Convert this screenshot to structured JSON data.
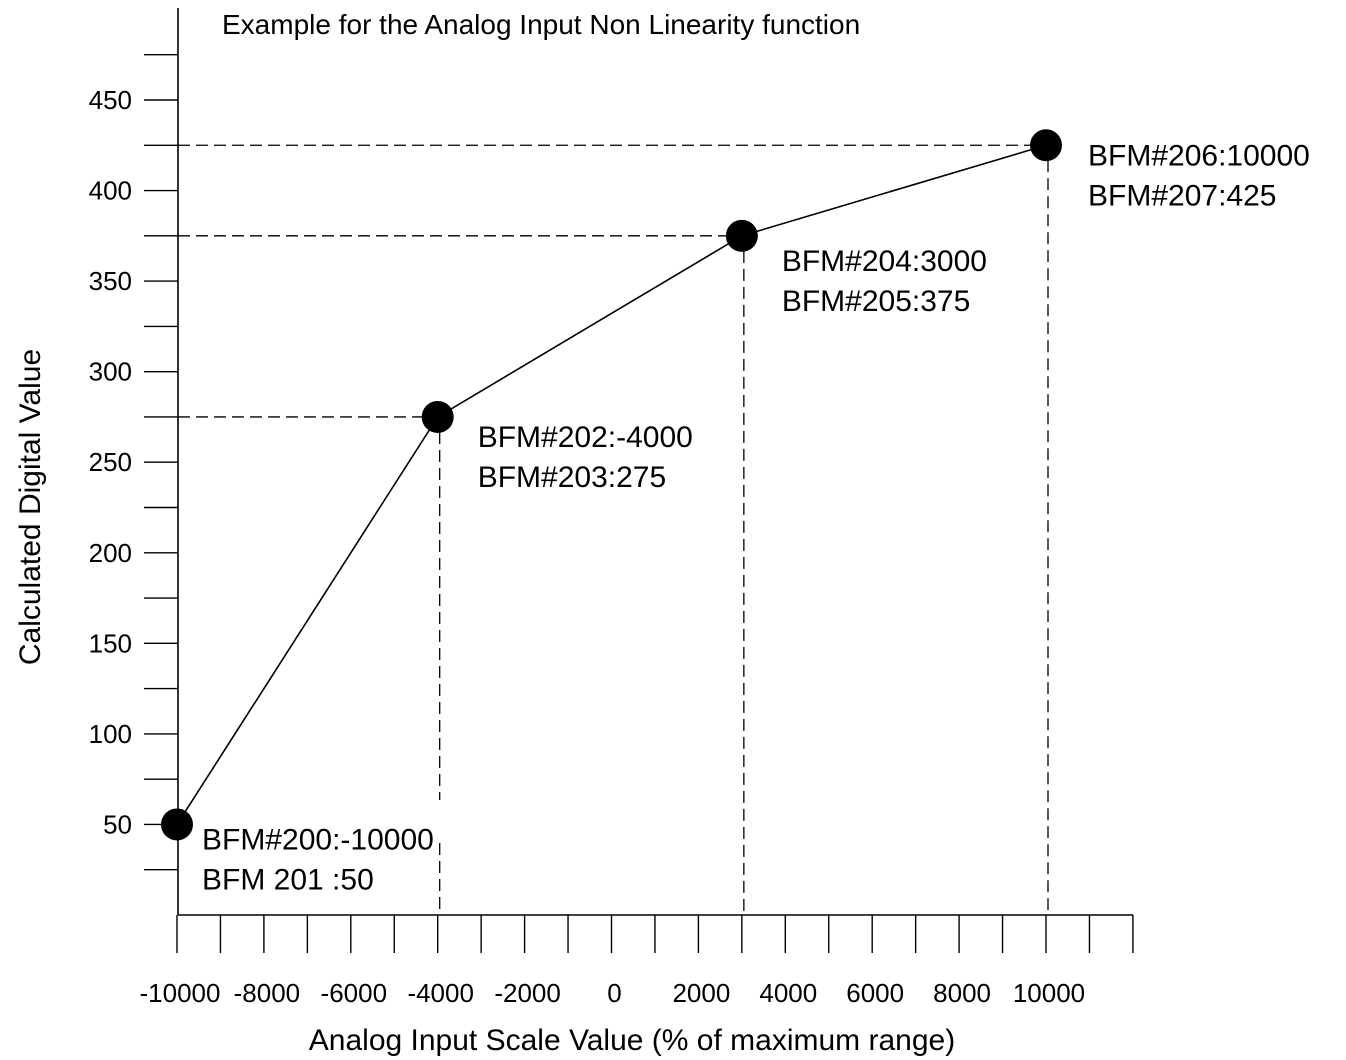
{
  "chart_data": {
    "type": "line",
    "title": "Example for the Analog Input Non Linearity function",
    "xlabel": "Analog Input Scale Value (% of maximum range)",
    "ylabel": "Calculated Digital Value",
    "xlim": [
      -10000,
      12000
    ],
    "ylim": [
      0,
      500
    ],
    "x_ticks": [
      -10000,
      -8000,
      -6000,
      -4000,
      -2000,
      0,
      2000,
      4000,
      6000,
      8000,
      10000
    ],
    "x_tick_labels": [
      "-10000",
      "-8000",
      "-6000",
      "-4000",
      "-2000",
      "0",
      "2000",
      "4000",
      "6000",
      "8000",
      "10000"
    ],
    "x_minor_step": 1000,
    "y_ticks": [
      50,
      100,
      150,
      200,
      250,
      300,
      350,
      400,
      450
    ],
    "y_tick_labels": [
      "50",
      "100",
      "150",
      "200",
      "250",
      "300",
      "350",
      "400",
      "450"
    ],
    "y_minor_step": 25,
    "grid": false,
    "series": [
      {
        "x": [
          -10000,
          -4000,
          3000,
          10000
        ],
        "y": [
          50,
          275,
          375,
          425
        ]
      }
    ],
    "annotations": [
      {
        "x": -10000,
        "y": 50,
        "lines": [
          "BFM#200:-10000",
          "BFM 201 :50"
        ]
      },
      {
        "x": -4000,
        "y": 275,
        "lines": [
          "BFM#202:-4000",
          "BFM#203:275"
        ]
      },
      {
        "x": 3000,
        "y": 375,
        "lines": [
          "BFM#204:3000",
          "BFM#205:375"
        ]
      },
      {
        "x": 10000,
        "y": 425,
        "lines": [
          "BFM#206:10000",
          "BFM#207:425"
        ]
      }
    ],
    "colors": {
      "line": "#000000",
      "marker": "#000000",
      "background": "#ffffff"
    }
  }
}
